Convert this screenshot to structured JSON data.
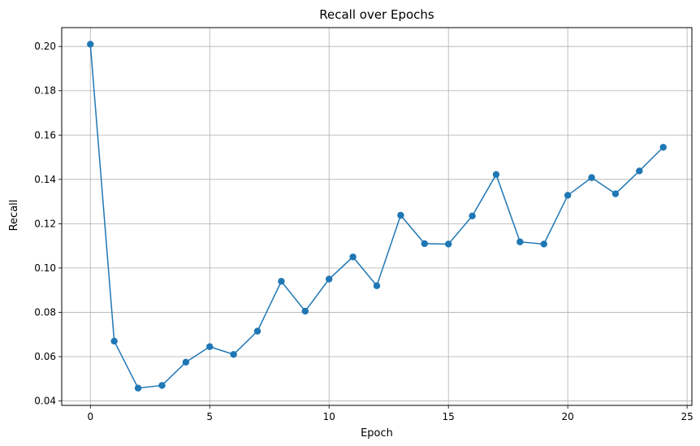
{
  "chart_data": {
    "type": "line",
    "title": "Recall over Epochs",
    "xlabel": "Epoch",
    "ylabel": "Recall",
    "xlim": [
      -1.2,
      25.2
    ],
    "ylim": [
      0.038,
      0.2085
    ],
    "xticks": [
      0,
      5,
      10,
      15,
      20,
      25
    ],
    "xtick_labels": [
      "0",
      "5",
      "10",
      "15",
      "20",
      "25"
    ],
    "yticks": [
      0.04,
      0.06,
      0.08,
      0.1,
      0.12,
      0.14,
      0.16,
      0.18,
      0.2
    ],
    "ytick_labels": [
      "0.04",
      "0.06",
      "0.08",
      "0.10",
      "0.12",
      "0.14",
      "0.16",
      "0.18",
      "0.20"
    ],
    "grid": true,
    "markers": true,
    "color": "#1f77b4",
    "x": [
      0,
      1,
      2,
      3,
      4,
      5,
      6,
      7,
      8,
      9,
      10,
      11,
      12,
      13,
      14,
      15,
      16,
      17,
      18,
      19,
      20,
      21,
      22,
      23,
      24
    ],
    "values": [
      0.201,
      0.067,
      0.0458,
      0.047,
      0.0575,
      0.0645,
      0.061,
      0.0715,
      0.094,
      0.0805,
      0.095,
      0.105,
      0.092,
      0.1238,
      0.111,
      0.1108,
      0.1235,
      0.1422,
      0.1118,
      0.1108,
      0.1328,
      0.1408,
      0.1335,
      0.1438,
      0.1545
    ]
  }
}
